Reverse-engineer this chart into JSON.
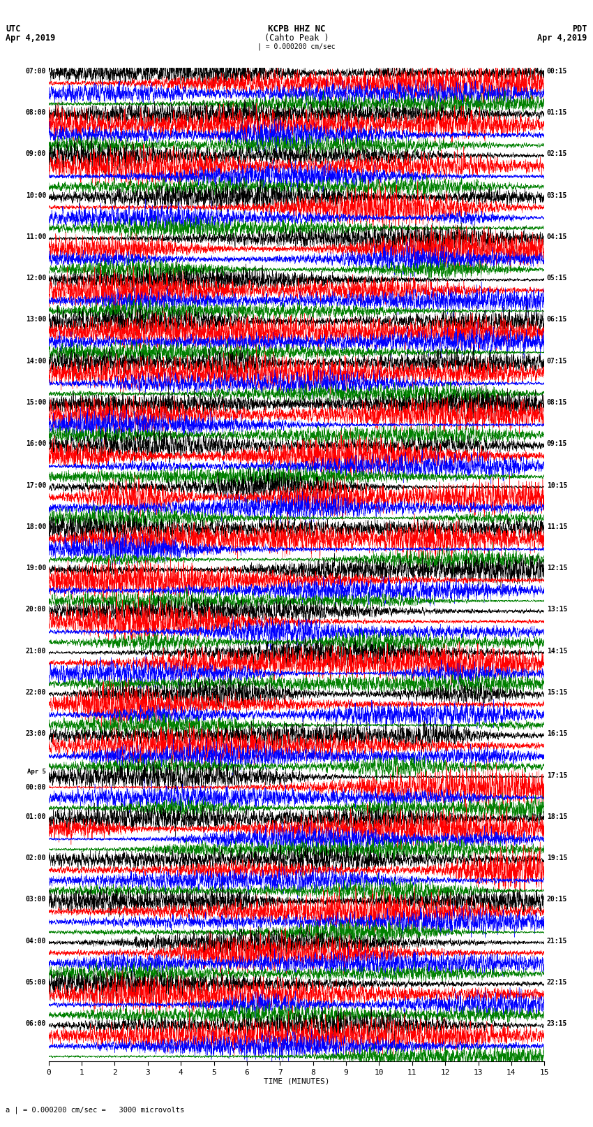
{
  "title_line1": "KCPB HHZ NC",
  "title_line2": "(Cahto Peak )",
  "scale_bar": "| = 0.000200 cm/sec",
  "scale_label": "a | = 0.000200 cm/sec =   3000 microvolts",
  "utc_label": "UTC",
  "utc_date": "Apr 4,2019",
  "pdt_label": "PDT",
  "pdt_date": "Apr 4,2019",
  "xlabel": "TIME (MINUTES)",
  "trace_colors": [
    "black",
    "red",
    "blue",
    "green"
  ],
  "left_times": [
    "07:00",
    "08:00",
    "09:00",
    "10:00",
    "11:00",
    "12:00",
    "13:00",
    "14:00",
    "15:00",
    "16:00",
    "17:00",
    "18:00",
    "19:00",
    "20:00",
    "21:00",
    "22:00",
    "23:00",
    "Apr 5\n00:00",
    "01:00",
    "02:00",
    "03:00",
    "04:00",
    "05:00",
    "06:00"
  ],
  "right_times": [
    "00:15",
    "01:15",
    "02:15",
    "03:15",
    "04:15",
    "05:15",
    "06:15",
    "07:15",
    "08:15",
    "09:15",
    "10:15",
    "11:15",
    "12:15",
    "13:15",
    "14:15",
    "15:15",
    "16:15",
    "17:15",
    "18:15",
    "19:15",
    "20:15",
    "21:15",
    "22:15",
    "23:15"
  ],
  "n_rows": 24,
  "traces_per_row": 4,
  "fig_width": 8.5,
  "fig_height": 16.13,
  "dpi": 100,
  "bg_color": "white",
  "time_minutes": 15,
  "samples_per_trace": 4500,
  "noise_seed": 42
}
